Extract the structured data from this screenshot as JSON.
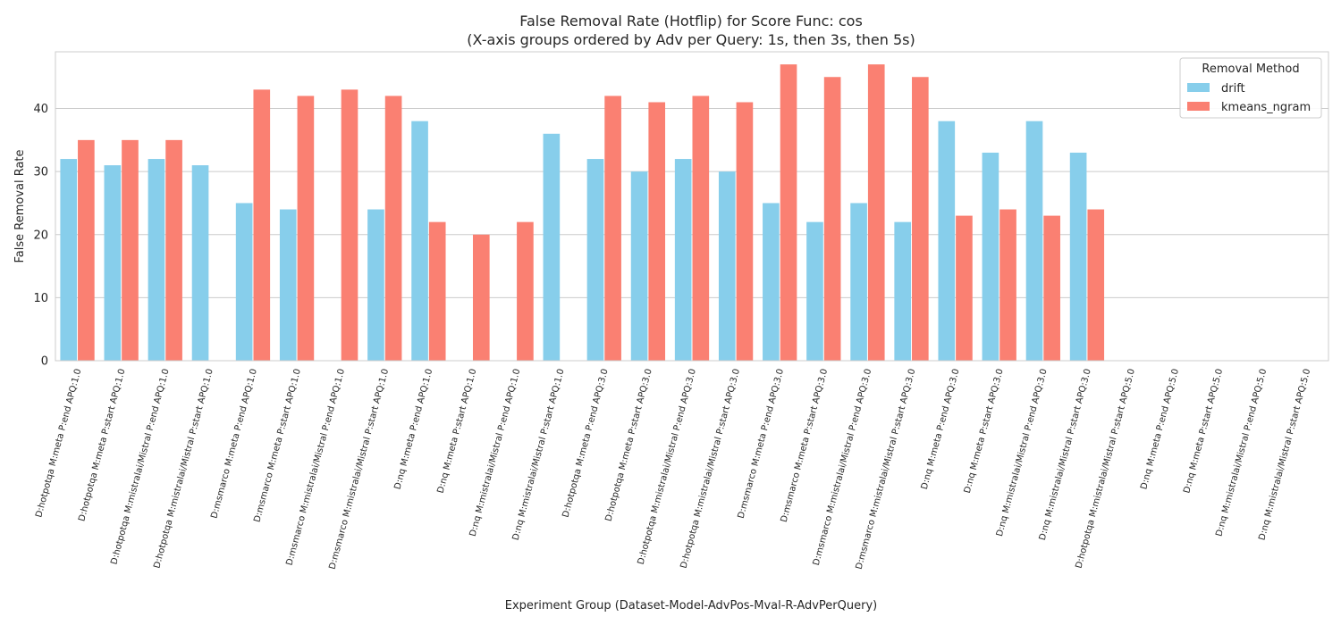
{
  "chart_data": {
    "type": "bar",
    "title": "False Removal Rate (Hotflip) for Score Func: cos",
    "subtitle": "(X-axis groups ordered by Adv per Query: 1s, then 3s, then 5s)",
    "xlabel": "Experiment Group (Dataset-Model-AdvPos-Mval-R-AdvPerQuery)",
    "ylabel": "False Removal Rate",
    "ylim": [
      0,
      49
    ],
    "yticks": [
      0,
      10,
      20,
      30,
      40
    ],
    "grid": true,
    "legend": {
      "title": "Removal Method",
      "position": "top-right"
    },
    "categories": [
      "D:hotpotqa M:meta P:end APQ:1.0",
      "D:hotpotqa M:meta P:start APQ:1.0",
      "D:hotpotqa M:mistralai/Mistral P:end APQ:1.0",
      "D:hotpotqa M:mistralai/Mistral P:start APQ:1.0",
      "D:msmarco M:meta P:end APQ:1.0",
      "D:msmarco M:meta P:start APQ:1.0",
      "D:msmarco M:mistralai/Mistral P:end APQ:1.0",
      "D:msmarco M:mistralai/Mistral P:start APQ:1.0",
      "D:nq M:meta P:end APQ:1.0",
      "D:nq M:meta P:start APQ:1.0",
      "D:nq M:mistralai/Mistral P:end APQ:1.0",
      "D:nq M:mistralai/Mistral P:start APQ:1.0",
      "D:hotpotqa M:meta P:end APQ:3.0",
      "D:hotpotqa M:meta P:start APQ:3.0",
      "D:hotpotqa M:mistralai/Mistral P:end APQ:3.0",
      "D:hotpotqa M:mistralai/Mistral P:start APQ:3.0",
      "D:msmarco M:meta P:end APQ:3.0",
      "D:msmarco M:meta P:start APQ:3.0",
      "D:msmarco M:mistralai/Mistral P:end APQ:3.0",
      "D:msmarco M:mistralai/Mistral P:start APQ:3.0",
      "D:nq M:meta P:end APQ:3.0",
      "D:nq M:meta P:start APQ:3.0",
      "D:nq M:mistralai/Mistral P:end APQ:3.0",
      "D:nq M:mistralai/Mistral P:start APQ:3.0",
      "D:hotpotqa M:mistralai/Mistral P:start APQ:5.0",
      "D:nq M:meta P:end APQ:5.0",
      "D:nq M:meta P:start APQ:5.0",
      "D:nq M:mistralai/Mistral P:end APQ:5.0",
      "D:nq M:mistralai/Mistral P:start APQ:5.0"
    ],
    "series": [
      {
        "name": "drift",
        "color": "#87ceeb",
        "values": [
          32,
          31,
          32,
          31,
          25,
          24,
          null,
          24,
          38,
          null,
          null,
          36,
          32,
          30,
          32,
          30,
          25,
          22,
          25,
          22,
          38,
          33,
          38,
          33,
          null,
          null,
          null,
          null,
          null
        ]
      },
      {
        "name": "kmeans_ngram",
        "color": "#fa8072",
        "values": [
          35,
          35,
          35,
          null,
          43,
          42,
          43,
          42,
          22,
          20,
          22,
          null,
          42,
          41,
          42,
          41,
          47,
          45,
          47,
          45,
          23,
          24,
          23,
          24,
          null,
          null,
          null,
          null,
          null
        ]
      }
    ]
  }
}
